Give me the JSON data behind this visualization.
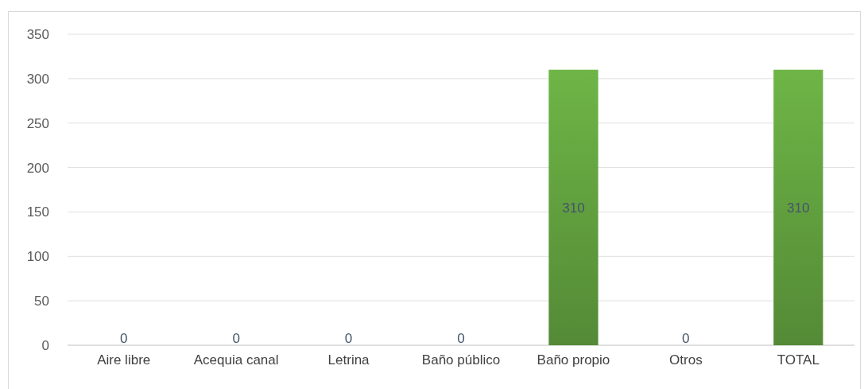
{
  "chart_data": {
    "type": "bar",
    "categories": [
      "Aire libre",
      "Acequia canal",
      "Letrina",
      "Baño público",
      "Baño propio",
      "Otros",
      "TOTAL"
    ],
    "values": [
      0,
      0,
      0,
      0,
      310,
      0,
      310
    ],
    "color": "#5e9a3c",
    "ylim": [
      0,
      350
    ],
    "yticks": [
      0,
      50,
      100,
      150,
      200,
      250,
      300,
      350
    ],
    "grid": "y",
    "data_labels": true
  }
}
